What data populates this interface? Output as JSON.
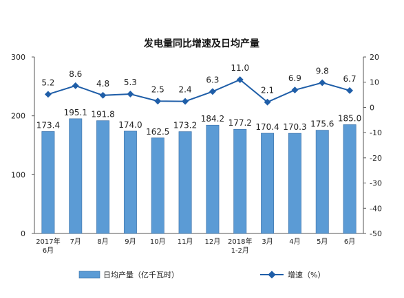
{
  "chart_data": {
    "type": "bar+line",
    "title": "发电量同比增速及日均产量",
    "categories": [
      [
        "2017年",
        "6月"
      ],
      [
        "7月"
      ],
      [
        "8月"
      ],
      [
        "9月"
      ],
      [
        "10月"
      ],
      [
        "11月"
      ],
      [
        "12月"
      ],
      [
        "2018年",
        "1-2月"
      ],
      [
        "3月"
      ],
      [
        "4月"
      ],
      [
        "5月"
      ],
      [
        "6月"
      ]
    ],
    "bar_series": {
      "name": "日均产量（亿千瓦时）",
      "values": [
        173.4,
        195.1,
        191.8,
        174.0,
        162.5,
        173.2,
        184.2,
        177.2,
        170.4,
        170.3,
        175.6,
        185.0
      ],
      "value_labels": [
        "173.4",
        "195.1",
        "191.8",
        "174.0",
        "162.5",
        "173.2",
        "184.2",
        "177.2",
        "170.4",
        "170.3",
        "175.6",
        "185.0"
      ],
      "color": "#5b9bd5"
    },
    "line_series": {
      "name": "增速（%）",
      "values": [
        5.2,
        8.6,
        4.8,
        5.3,
        2.5,
        2.4,
        6.3,
        11.0,
        2.1,
        6.9,
        9.8,
        6.7
      ],
      "value_labels": [
        "5.2",
        "8.6",
        "4.8",
        "5.3",
        "2.5",
        "2.4",
        "6.3",
        "11.0",
        "2.1",
        "6.9",
        "9.8",
        "6.7"
      ],
      "color": "#1f5ea8"
    },
    "y_left": {
      "min": 0,
      "max": 300,
      "ticks": [
        "0",
        "100",
        "200",
        "300"
      ]
    },
    "y_right": {
      "min": -50,
      "max": 20,
      "ticks": [
        "-50",
        "-40",
        "-30",
        "-20",
        "-10",
        "0",
        "10",
        "20"
      ]
    },
    "legend_position": "bottom",
    "grid": false
  }
}
